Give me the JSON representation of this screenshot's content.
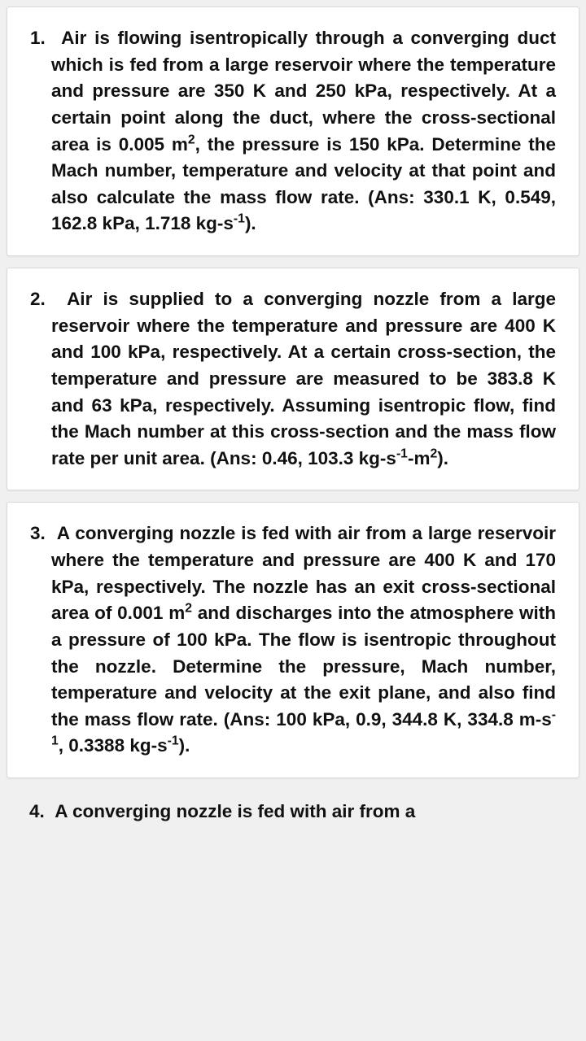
{
  "questions": [
    {
      "num": "1.",
      "text_html": "Air is flowing isentropically through a converging duct which is fed from a large reservoir where the temperature and pressure are 350 K and 250 kPa, respectively. At a certain point along the duct, where the cross-sectional area is 0.005 m<sup>2</sup>, the pressure is 150 kPa. Determine the Mach number, temperature and velocity at that point and also calculate the mass flow rate. (Ans: 330.1 K, 0.549, 162.8 kPa, 1.718 kg-s<sup>-1</sup>)."
    },
    {
      "num": "2.",
      "text_html": "Air is supplied to a converging nozzle from a large reservoir where the temperature and pressure are 400 K and 100 kPa, respectively. At a certain cross-section, the temperature and pressure are measured to be 383.8 K and 63 kPa, respectively. Assuming isentropic flow, find the Mach number at this cross-section and the mass flow rate per unit area. (Ans: 0.46, 103.3 kg-s<sup>-1</sup>-m<sup>2</sup>)."
    },
    {
      "num": "3.",
      "text_html": "A converging nozzle is fed with air from a large reservoir where the temperature and pressure are 400 K and 170 kPa, respectively. The nozzle has an exit cross-sectional area of 0.001 m<sup>2</sup> and discharges into the atmosphere with a pressure of 100 kPa. The flow is isentropic throughout the nozzle. Determine the pressure, Mach number, temperature and velocity at the exit plane, and also find the mass flow rate. (Ans: 100 kPa, 0.9, 344.8 K, 334.8 m-s<sup>-1</sup>, 0.3388 kg-s<sup>-1</sup>)."
    }
  ],
  "partial": {
    "num": "4.",
    "text": "A converging nozzle is fed with air from a"
  },
  "style": {
    "card_bg": "#ffffff",
    "page_bg": "#f0f0f0",
    "text_color": "#111111",
    "border_color": "#d8d8d8",
    "font_size_pt": 17,
    "font_weight": "bold",
    "line_height": 1.45
  }
}
